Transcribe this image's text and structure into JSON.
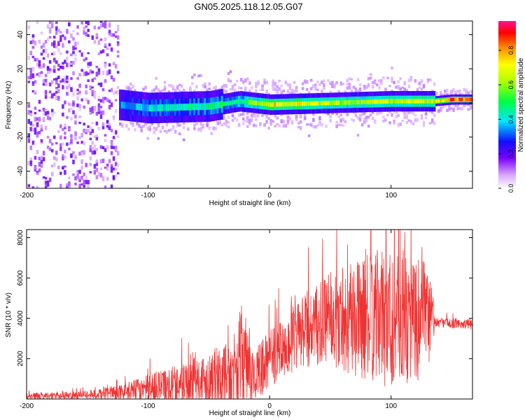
{
  "title": "GN05.2025.118.12.05.G07",
  "chart_data": [
    {
      "type": "heatmap",
      "xlabel": "Height of straight line (km)",
      "ylabel": "Frequency (Hz)",
      "xlim": [
        -200,
        167
      ],
      "ylim": [
        -50,
        48
      ],
      "xticks": [
        -200,
        -100,
        0,
        100
      ],
      "yticks": [
        -40,
        -20,
        0,
        20,
        40
      ],
      "colorbar": {
        "label": "Normalized spectral amplitude",
        "range": [
          0,
          0.97
        ],
        "ticks": [
          0.0,
          0.2,
          0.4,
          0.6,
          0.8
        ]
      },
      "description_points": [
        {
          "x": -200,
          "f": 0,
          "amp": 0.15
        },
        {
          "x": -125,
          "f": -1,
          "amp": 0.35
        },
        {
          "x": -100,
          "f": -3,
          "amp": 0.45
        },
        {
          "x": -50,
          "f": -2,
          "amp": 0.5
        },
        {
          "x": -25,
          "f": 1,
          "amp": 0.55
        },
        {
          "x": 0,
          "f": -1,
          "amp": 0.8
        },
        {
          "x": 50,
          "f": 0,
          "amp": 0.7
        },
        {
          "x": 100,
          "f": 1,
          "amp": 0.7
        },
        {
          "x": 135,
          "f": 1,
          "amp": 0.75
        },
        {
          "x": 150,
          "f": 2,
          "amp": 0.95
        },
        {
          "x": 167,
          "f": 2,
          "amp": 0.9
        }
      ]
    },
    {
      "type": "line",
      "xlabel": "Height of straight line (km)",
      "ylabel": "SNR (10 * v/v)",
      "xlim": [
        -200,
        167
      ],
      "ylim": [
        0,
        8400
      ],
      "xticks": [
        -200,
        -100,
        0,
        100
      ],
      "yticks": [
        2000,
        4000,
        6000,
        8000
      ],
      "color": "#ee3333",
      "envelope": [
        {
          "x": -200,
          "base": 150,
          "spread": 150
        },
        {
          "x": -150,
          "base": 200,
          "spread": 200
        },
        {
          "x": -120,
          "base": 350,
          "spread": 400
        },
        {
          "x": -90,
          "base": 600,
          "spread": 900
        },
        {
          "x": -60,
          "base": 900,
          "spread": 1200
        },
        {
          "x": -30,
          "base": 1200,
          "spread": 1800
        },
        {
          "x": -22,
          "base": 2200,
          "spread": 2800
        },
        {
          "x": -15,
          "base": 1000,
          "spread": 1500
        },
        {
          "x": 0,
          "base": 2000,
          "spread": 1400
        },
        {
          "x": 25,
          "base": 3200,
          "spread": 1800
        },
        {
          "x": 50,
          "base": 3900,
          "spread": 2300
        },
        {
          "x": 75,
          "base": 4000,
          "spread": 3000
        },
        {
          "x": 100,
          "base": 4100,
          "spread": 3600
        },
        {
          "x": 120,
          "base": 4000,
          "spread": 3200
        },
        {
          "x": 133,
          "base": 4000,
          "spread": 2500
        },
        {
          "x": 136,
          "base": 3800,
          "spread": 250
        },
        {
          "x": 167,
          "base": 3700,
          "spread": 250
        }
      ]
    }
  ]
}
